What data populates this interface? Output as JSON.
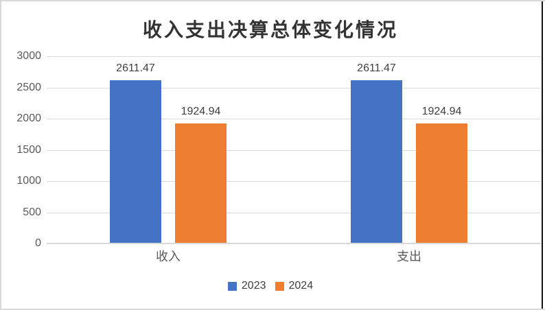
{
  "frame": {
    "background": "#ffffff",
    "border_color": "#d9d9d9",
    "right_edge_color": "#111111"
  },
  "chart_data": {
    "type": "bar",
    "title": "收入支出决算总体变化情况",
    "categories": [
      "收入",
      "支出"
    ],
    "series": [
      {
        "name": "2023",
        "color": "#4472C4",
        "values": [
          2611.47,
          2611.47
        ]
      },
      {
        "name": "2024",
        "color": "#ED7D31",
        "values": [
          1924.94,
          1924.94
        ]
      }
    ],
    "data_labels": [
      [
        "2611.47",
        "2611.47"
      ],
      [
        "1924.94",
        "1924.94"
      ]
    ],
    "xlabel": "",
    "ylabel": "",
    "ylim": [
      0,
      3000
    ],
    "yticks": [
      "0",
      "500",
      "1000",
      "1500",
      "2000",
      "2500",
      "3000"
    ],
    "grid": "horizontal",
    "gridline_color": "#d9d9d9",
    "axis_line_color": "#d9d9d9",
    "tick_label_color": "#595959",
    "data_label_color": "#404040",
    "title_color": "#333333",
    "legend_position": "bottom"
  }
}
